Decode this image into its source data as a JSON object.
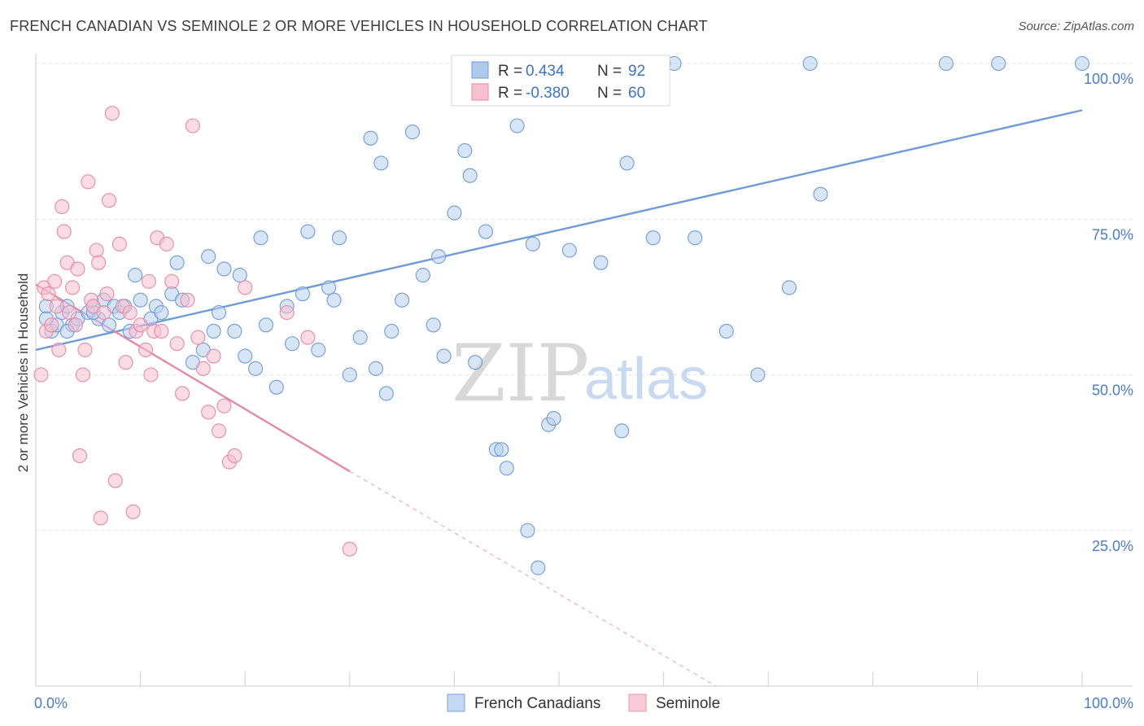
{
  "title": "FRENCH CANADIAN VS SEMINOLE 2 OR MORE VEHICLES IN HOUSEHOLD CORRELATION CHART",
  "source": "Source: ZipAtlas.com",
  "watermark": {
    "part1": "ZIP",
    "part2": "atlas"
  },
  "legend_top": [
    {
      "r_label": "R =",
      "r_value": "0.434",
      "n_label": "N =",
      "n_value": "92",
      "fill": "#aec8ee",
      "stroke": "#6f9bd8"
    },
    {
      "r_label": "R =",
      "r_value": "-0.380",
      "n_label": "N =",
      "n_value": "60",
      "fill": "#f7bfd0",
      "stroke": "#e48aa8"
    }
  ],
  "legend_bottom": [
    {
      "label": "French Canadians",
      "fill": "#c5d8f3",
      "stroke": "#7aa2da"
    },
    {
      "label": "Seminole",
      "fill": "#f9cbd9",
      "stroke": "#e595b0"
    }
  ],
  "chart_data": {
    "type": "scatter",
    "ylabel": "2 or more Vehicles in Household",
    "xlim": [
      0,
      100
    ],
    "ylim": [
      0,
      100
    ],
    "x_tick_labels": [
      {
        "value": 0,
        "label": "0.0%"
      },
      {
        "value": 100,
        "label": "100.0%"
      }
    ],
    "y_tick_labels": [
      {
        "value": 25,
        "label": "25.0%"
      },
      {
        "value": 50,
        "label": "50.0%"
      },
      {
        "value": 75,
        "label": "75.0%"
      },
      {
        "value": 100,
        "label": "100.0%"
      }
    ],
    "series": [
      {
        "name": "French Canadians",
        "color": "#6f9bd8",
        "fill": "#b8cff0",
        "trend": {
          "x": [
            0,
            100
          ],
          "y": [
            54.0,
            92.5
          ],
          "style": "solid"
        },
        "points": [
          [
            1,
            61
          ],
          [
            1.5,
            57
          ],
          [
            2,
            58
          ],
          [
            2.5,
            60
          ],
          [
            3,
            61
          ],
          [
            3.5,
            58
          ],
          [
            4,
            59
          ],
          [
            5,
            60
          ],
          [
            5.5,
            61
          ],
          [
            6,
            59
          ],
          [
            6.5,
            62
          ],
          [
            7,
            58
          ],
          [
            7.5,
            61
          ],
          [
            8,
            60
          ],
          [
            8.5,
            61
          ],
          [
            9,
            57
          ],
          [
            9.5,
            66
          ],
          [
            10,
            62
          ],
          [
            11,
            59
          ],
          [
            11.5,
            61
          ],
          [
            12,
            60
          ],
          [
            13,
            63
          ],
          [
            13.5,
            68
          ],
          [
            14,
            62
          ],
          [
            15,
            52
          ],
          [
            16,
            54
          ],
          [
            16.5,
            69
          ],
          [
            17,
            57
          ],
          [
            17.5,
            60
          ],
          [
            18,
            67
          ],
          [
            19,
            57
          ],
          [
            19.5,
            66
          ],
          [
            20,
            53
          ],
          [
            21,
            51
          ],
          [
            21.5,
            72
          ],
          [
            22,
            58
          ],
          [
            23,
            48
          ],
          [
            24,
            61
          ],
          [
            24.5,
            55
          ],
          [
            25.5,
            63
          ],
          [
            26,
            73
          ],
          [
            27,
            54
          ],
          [
            28,
            64
          ],
          [
            28.5,
            62
          ],
          [
            29,
            72
          ],
          [
            30,
            50
          ],
          [
            31,
            56
          ],
          [
            32,
            88
          ],
          [
            32.5,
            51
          ],
          [
            33,
            84
          ],
          [
            33.5,
            47
          ],
          [
            34,
            57
          ],
          [
            35,
            62
          ],
          [
            36,
            89
          ],
          [
            37,
            66
          ],
          [
            38,
            58
          ],
          [
            38.5,
            69
          ],
          [
            39,
            53
          ],
          [
            40,
            76
          ],
          [
            41,
            86
          ],
          [
            41.5,
            82
          ],
          [
            42,
            52
          ],
          [
            43,
            73
          ],
          [
            44,
            38
          ],
          [
            44.5,
            38
          ],
          [
            45,
            35
          ],
          [
            46,
            90
          ],
          [
            47,
            25
          ],
          [
            47.5,
            71
          ],
          [
            48,
            19
          ],
          [
            49,
            42
          ],
          [
            49.5,
            43
          ],
          [
            51,
            70
          ],
          [
            53,
            100
          ],
          [
            54,
            68
          ],
          [
            56,
            41
          ],
          [
            56.5,
            84
          ],
          [
            59,
            72
          ],
          [
            60,
            100
          ],
          [
            61,
            100
          ],
          [
            63,
            72
          ],
          [
            66,
            57
          ],
          [
            69,
            50
          ],
          [
            72,
            64
          ],
          [
            74,
            100
          ],
          [
            75,
            79
          ],
          [
            87,
            100
          ],
          [
            92,
            100
          ],
          [
            100,
            100
          ],
          [
            1,
            59
          ],
          [
            3,
            57
          ],
          [
            5.5,
            60
          ]
        ]
      },
      {
        "name": "Seminole",
        "color": "#e48aa8",
        "fill": "#f7bfd0",
        "trend": {
          "x": [
            0,
            30
          ],
          "y": [
            64.5,
            34.5
          ],
          "style": "solid",
          "dashed_extension": {
            "x": [
              30,
              65
            ],
            "y": [
              34.5,
              0
            ]
          }
        },
        "points": [
          [
            0.5,
            50
          ],
          [
            0.8,
            64
          ],
          [
            1,
            57
          ],
          [
            1.2,
            63
          ],
          [
            1.5,
            58
          ],
          [
            1.8,
            65
          ],
          [
            2,
            61
          ],
          [
            2.2,
            54
          ],
          [
            2.5,
            77
          ],
          [
            2.7,
            73
          ],
          [
            3,
            68
          ],
          [
            3.2,
            60
          ],
          [
            3.5,
            64
          ],
          [
            3.8,
            58
          ],
          [
            4,
            67
          ],
          [
            4.2,
            37
          ],
          [
            4.5,
            50
          ],
          [
            4.7,
            54
          ],
          [
            5,
            81
          ],
          [
            5.3,
            62
          ],
          [
            5.5,
            61
          ],
          [
            5.8,
            70
          ],
          [
            6,
            68
          ],
          [
            6.2,
            27
          ],
          [
            6.5,
            60
          ],
          [
            6.8,
            63
          ],
          [
            7,
            78
          ],
          [
            7.3,
            92
          ],
          [
            7.6,
            33
          ],
          [
            8,
            71
          ],
          [
            8.3,
            61
          ],
          [
            8.6,
            52
          ],
          [
            9,
            60
          ],
          [
            9.3,
            28
          ],
          [
            9.6,
            57
          ],
          [
            10,
            58
          ],
          [
            10.5,
            54
          ],
          [
            10.8,
            65
          ],
          [
            11,
            50
          ],
          [
            11.3,
            57
          ],
          [
            11.6,
            72
          ],
          [
            12,
            57
          ],
          [
            12.5,
            71
          ],
          [
            13,
            65
          ],
          [
            13.5,
            55
          ],
          [
            14,
            47
          ],
          [
            14.5,
            62
          ],
          [
            15,
            90
          ],
          [
            15.5,
            56
          ],
          [
            16,
            51
          ],
          [
            16.5,
            44
          ],
          [
            17,
            53
          ],
          [
            17.5,
            41
          ],
          [
            18,
            45
          ],
          [
            18.5,
            36
          ],
          [
            19,
            37
          ],
          [
            20,
            64
          ],
          [
            24,
            60
          ],
          [
            26,
            56
          ],
          [
            30,
            22
          ]
        ]
      }
    ]
  }
}
